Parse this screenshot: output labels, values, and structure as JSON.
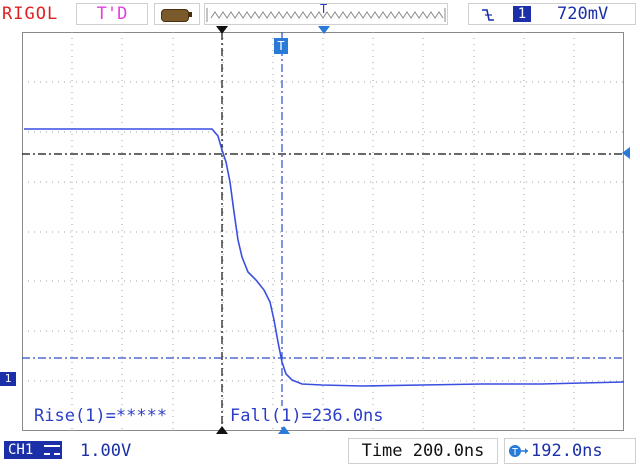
{
  "topbar": {
    "brand": "RIGOL",
    "trigger_status": "T'D",
    "memory_icon": "memory-depth-icon",
    "trigger_level": "720mV",
    "trigger_source": "1",
    "trigger_slope_icon": "falling-edge-icon"
  },
  "screen": {
    "ch1_marker": "1",
    "trigger_marker": "T",
    "measurements": {
      "rise": "Rise(1)=*****",
      "fall": "Fall(1)=236.0ns"
    }
  },
  "bottombar": {
    "ch1_label": "CH1",
    "ch1_scale": "1.00V",
    "time_scale": "Time 200.0ns",
    "trigger_offset": "192.0ns"
  },
  "colors": {
    "brand": "#e02020",
    "trigger_status": "#e040e0",
    "channel1": "#2a3ec8",
    "grid": "#999999"
  }
}
